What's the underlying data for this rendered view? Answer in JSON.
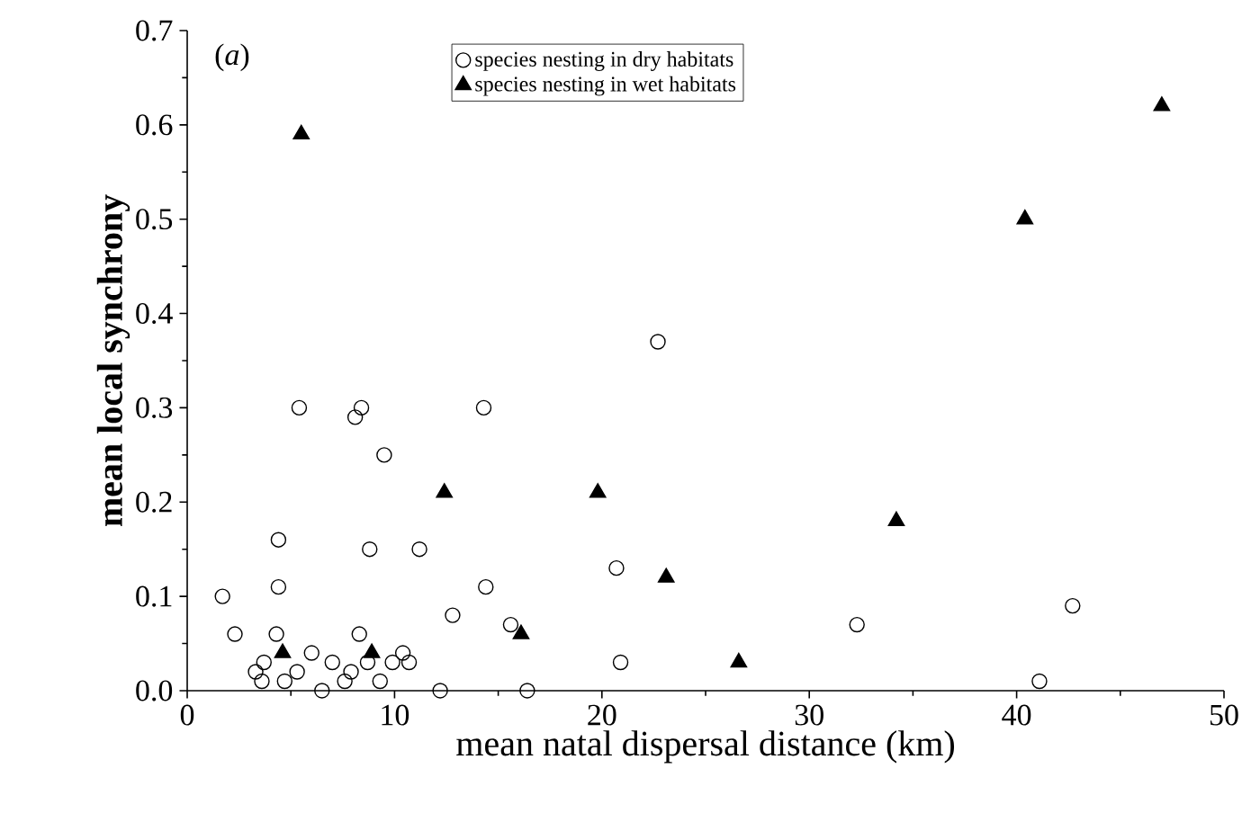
{
  "chart_data": {
    "type": "scatter",
    "xlabel": "mean natal dispersal distance (km)",
    "ylabel": "mean local synchrony",
    "annotations": [
      "(*a*)"
    ],
    "xlim": [
      0,
      50
    ],
    "xticks": [
      0,
      10,
      20,
      30,
      40,
      50
    ],
    "ylim": [
      0,
      0.7
    ],
    "yticks": [
      {
        "value": 0,
        "label": "0.0"
      },
      0.1,
      0.2,
      0.3,
      0.4,
      0.5,
      0.6,
      0.7
    ],
    "legend": "top",
    "grid": false,
    "series": [
      {
        "name": "species nesting in dry habitats",
        "color": "#000000",
        "marker": "circle",
        "x": [
          1.7,
          2.3,
          4.4,
          4.4,
          4.3,
          3.7,
          3.3,
          3.6,
          4.7,
          5.3,
          6.0,
          6.5,
          7.0,
          7.6,
          7.9,
          8.3,
          8.7,
          8.8,
          9.3,
          9.9,
          10.4,
          10.7,
          11.2,
          12.2,
          12.8,
          14.4,
          15.6,
          16.4,
          5.4,
          8.1,
          8.4,
          14.3,
          9.5,
          22.7,
          20.7,
          20.9,
          32.3,
          42.7,
          41.1
        ],
        "values": [
          0.1,
          0.06,
          0.16,
          0.11,
          0.06,
          0.03,
          0.02,
          0.01,
          0.01,
          0.02,
          0.04,
          0.0,
          0.03,
          0.01,
          0.02,
          0.06,
          0.03,
          0.15,
          0.01,
          0.03,
          0.04,
          0.03,
          0.15,
          0.0,
          0.08,
          0.11,
          0.07,
          0.0,
          0.3,
          0.29,
          0.3,
          0.3,
          0.25,
          0.37,
          0.13,
          0.03,
          0.07,
          0.09,
          0.01
        ]
      },
      {
        "name": "species nesting in wet habitats",
        "color": "#000000",
        "marker": "triangle",
        "x": [
          4.6,
          5.5,
          8.9,
          12.4,
          16.1,
          19.8,
          23.1,
          26.6,
          34.2,
          40.4,
          47.0
        ],
        "values": [
          0.04,
          0.59,
          0.04,
          0.21,
          0.06,
          0.21,
          0.12,
          0.03,
          0.18,
          0.5,
          0.62
        ]
      }
    ]
  }
}
